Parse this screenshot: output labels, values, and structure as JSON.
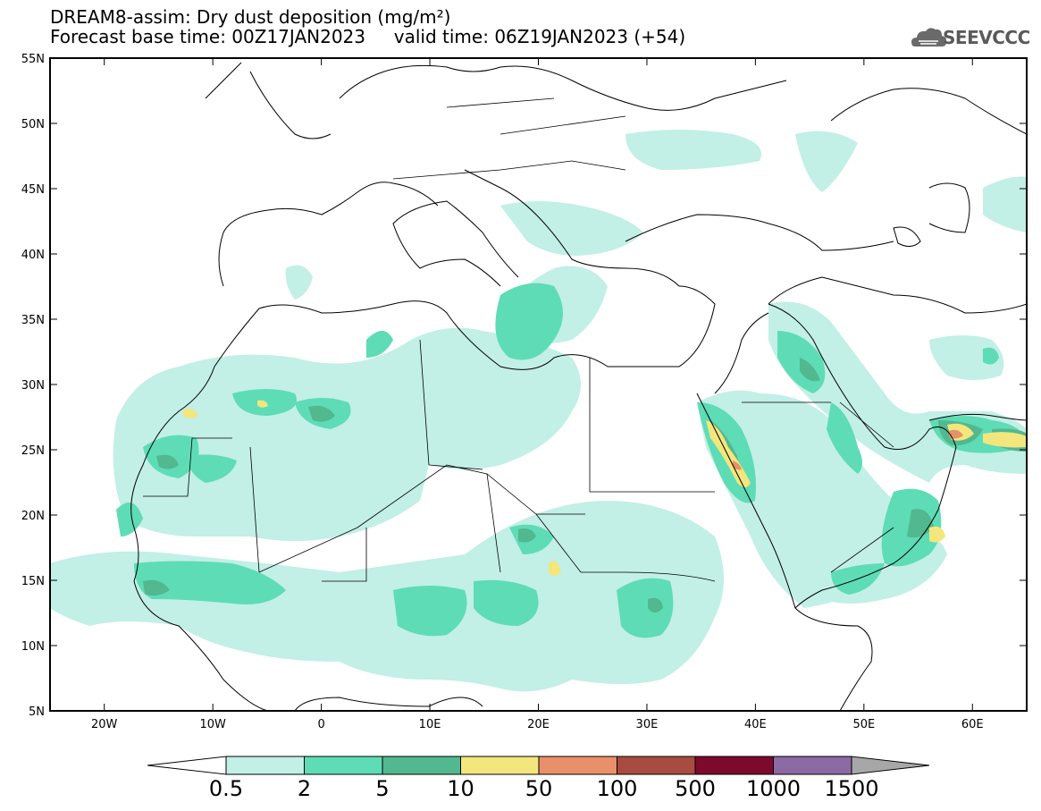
{
  "title": {
    "line1": "DREAM8-assim: Dry dust deposition (mg/m²)",
    "line2": "Forecast base time: 00Z17JAN2023     valid time: 06Z19JAN2023 (+54)"
  },
  "logo": {
    "text": "SEEVCCC",
    "icon": "cloud-icon"
  },
  "map": {
    "lat_ticks": [
      "55N",
      "50N",
      "45N",
      "40N",
      "35N",
      "30N",
      "25N",
      "20N",
      "15N",
      "10N",
      "5N"
    ],
    "lon_ticks": [
      "20W",
      "10W",
      "0",
      "10E",
      "20E",
      "30E",
      "40E",
      "50E",
      "60E"
    ],
    "lon_range": [
      -25,
      65
    ],
    "lat_range": [
      5,
      55
    ]
  },
  "colorbar": {
    "labels": [
      "0.5",
      "2",
      "5",
      "10",
      "50",
      "100",
      "500",
      "1000",
      "1500"
    ],
    "colors": [
      "#c2efe6",
      "#5edcb6",
      "#52b88f",
      "#f3e67c",
      "#e9906a",
      "#a84b41",
      "#7d0a2c",
      "#8c6aa3",
      "#a7a7a7"
    ],
    "under_color": "#ffffff"
  }
}
